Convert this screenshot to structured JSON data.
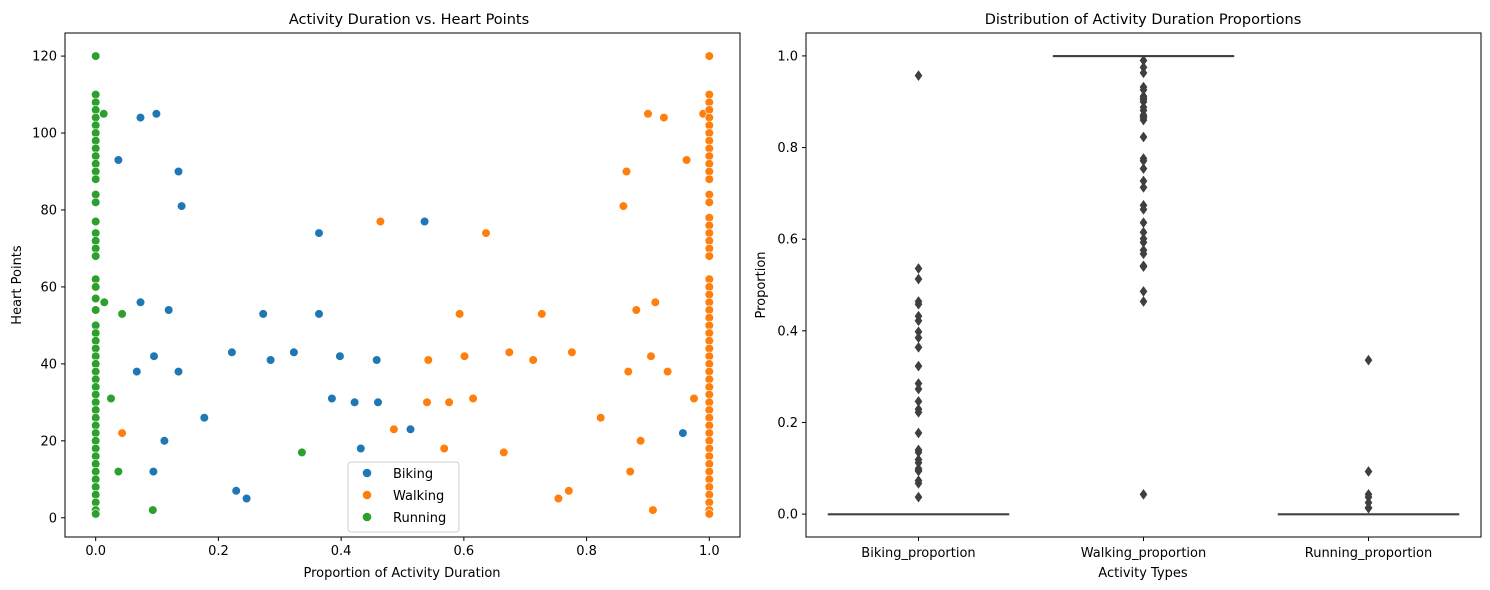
{
  "colors": {
    "biking": "#1f77b4",
    "walking": "#ff7f0e",
    "running": "#2ca02c",
    "box": "#3f3f3f"
  },
  "chart_data": [
    {
      "type": "scatter",
      "title": "Activity Duration vs. Heart Points",
      "xlabel": "Proportion of Activity Duration",
      "ylabel": "Heart Points",
      "xlim": [
        -0.05,
        1.05
      ],
      "ylim": [
        -5,
        126
      ],
      "xticks": [
        "0.0",
        "0.2",
        "0.4",
        "0.6",
        "0.8",
        "1.0"
      ],
      "xtick_values": [
        0,
        0.2,
        0.4,
        0.6,
        0.8,
        1.0
      ],
      "yticks": [
        "0",
        "20",
        "40",
        "60",
        "80",
        "100",
        "120"
      ],
      "ytick_values": [
        0,
        20,
        40,
        60,
        80,
        100,
        120
      ],
      "grid": false,
      "legend": "lower center",
      "series": [
        {
          "name": "Biking",
          "color": "#1f77b4",
          "points": [
            [
              0.037,
              93
            ],
            [
              0.073,
              104
            ],
            [
              0.099,
              105
            ],
            [
              0.135,
              90
            ],
            [
              0.14,
              81
            ],
            [
              0.364,
              74
            ],
            [
              0.536,
              77
            ],
            [
              0.073,
              56
            ],
            [
              0.119,
              54
            ],
            [
              0.273,
              53
            ],
            [
              0.364,
              53
            ],
            [
              0.222,
              43
            ],
            [
              0.323,
              43
            ],
            [
              0.095,
              42
            ],
            [
              0.398,
              42
            ],
            [
              0.285,
              41
            ],
            [
              0.458,
              41
            ],
            [
              0.067,
              38
            ],
            [
              0.135,
              38
            ],
            [
              0.385,
              31
            ],
            [
              0.422,
              30
            ],
            [
              0.46,
              30
            ],
            [
              0.177,
              26
            ],
            [
              0.513,
              23
            ],
            [
              0.957,
              22
            ],
            [
              0.112,
              20
            ],
            [
              0.432,
              18
            ],
            [
              0.094,
              12
            ],
            [
              0.229,
              7
            ],
            [
              0.246,
              5
            ]
          ]
        },
        {
          "name": "Walking",
          "color": "#ff7f0e",
          "points": [
            [
              0.9,
              105
            ],
            [
              0.926,
              104
            ],
            [
              0.99,
              105
            ],
            [
              0.963,
              93
            ],
            [
              0.865,
              90
            ],
            [
              0.86,
              81
            ],
            [
              0.464,
              77
            ],
            [
              0.636,
              74
            ],
            [
              0.912,
              56
            ],
            [
              0.881,
              54
            ],
            [
              0.593,
              53
            ],
            [
              0.727,
              53
            ],
            [
              0.674,
              43
            ],
            [
              0.776,
              43
            ],
            [
              0.601,
              42
            ],
            [
              0.905,
              42
            ],
            [
              0.542,
              41
            ],
            [
              0.713,
              41
            ],
            [
              0.868,
              38
            ],
            [
              0.932,
              38
            ],
            [
              0.615,
              31
            ],
            [
              0.975,
              31
            ],
            [
              0.54,
              30
            ],
            [
              0.576,
              30
            ],
            [
              0.823,
              26
            ],
            [
              0.486,
              23
            ],
            [
              0.043,
              22
            ],
            [
              0.888,
              20
            ],
            [
              0.568,
              18
            ],
            [
              0.665,
              17
            ],
            [
              0.871,
              12
            ],
            [
              0.771,
              7
            ],
            [
              0.754,
              5
            ],
            [
              0.908,
              2
            ],
            [
              1.0,
              120
            ],
            [
              1.0,
              110
            ],
            [
              1.0,
              108
            ],
            [
              1.0,
              106
            ],
            [
              1.0,
              104
            ],
            [
              1.0,
              102
            ],
            [
              1.0,
              100
            ],
            [
              1.0,
              98
            ],
            [
              1.0,
              96
            ],
            [
              1.0,
              94
            ],
            [
              1.0,
              92
            ],
            [
              1.0,
              90
            ],
            [
              1.0,
              88
            ],
            [
              1.0,
              84
            ],
            [
              1.0,
              82
            ],
            [
              1.0,
              78
            ],
            [
              1.0,
              76
            ],
            [
              1.0,
              74
            ],
            [
              1.0,
              72
            ],
            [
              1.0,
              70
            ],
            [
              1.0,
              68
            ],
            [
              1.0,
              62
            ],
            [
              1.0,
              60
            ],
            [
              1.0,
              58
            ],
            [
              1.0,
              56
            ],
            [
              1.0,
              54
            ],
            [
              1.0,
              52
            ],
            [
              1.0,
              50
            ],
            [
              1.0,
              48
            ],
            [
              1.0,
              46
            ],
            [
              1.0,
              44
            ],
            [
              1.0,
              42
            ],
            [
              1.0,
              40
            ],
            [
              1.0,
              38
            ],
            [
              1.0,
              36
            ],
            [
              1.0,
              34
            ],
            [
              1.0,
              32
            ],
            [
              1.0,
              30
            ],
            [
              1.0,
              28
            ],
            [
              1.0,
              26
            ],
            [
              1.0,
              24
            ],
            [
              1.0,
              22
            ],
            [
              1.0,
              20
            ],
            [
              1.0,
              18
            ],
            [
              1.0,
              16
            ],
            [
              1.0,
              14
            ],
            [
              1.0,
              12
            ],
            [
              1.0,
              10
            ],
            [
              1.0,
              8
            ],
            [
              1.0,
              6
            ],
            [
              1.0,
              4
            ],
            [
              1.0,
              2
            ],
            [
              1.0,
              1
            ]
          ]
        },
        {
          "name": "Running",
          "color": "#2ca02c",
          "points": [
            [
              0.013,
              105
            ],
            [
              0.014,
              56
            ],
            [
              0.043,
              53
            ],
            [
              0.025,
              31
            ],
            [
              0.336,
              17
            ],
            [
              0.037,
              12
            ],
            [
              0.093,
              2
            ],
            [
              0.0,
              120
            ],
            [
              0.0,
              110
            ],
            [
              0.0,
              108
            ],
            [
              0.0,
              106
            ],
            [
              0.0,
              104
            ],
            [
              0.0,
              102
            ],
            [
              0.0,
              100
            ],
            [
              0.0,
              98
            ],
            [
              0.0,
              96
            ],
            [
              0.0,
              94
            ],
            [
              0.0,
              92
            ],
            [
              0.0,
              90
            ],
            [
              0.0,
              88
            ],
            [
              0.0,
              84
            ],
            [
              0.0,
              82
            ],
            [
              0.0,
              77
            ],
            [
              0.0,
              74
            ],
            [
              0.0,
              72
            ],
            [
              0.0,
              70
            ],
            [
              0.0,
              68
            ],
            [
              0.0,
              62
            ],
            [
              0.0,
              60
            ],
            [
              0.0,
              57
            ],
            [
              0.0,
              54
            ],
            [
              0.0,
              50
            ],
            [
              0.0,
              48
            ],
            [
              0.0,
              46
            ],
            [
              0.0,
              44
            ],
            [
              0.0,
              42
            ],
            [
              0.0,
              40
            ],
            [
              0.0,
              38
            ],
            [
              0.0,
              36
            ],
            [
              0.0,
              34
            ],
            [
              0.0,
              32
            ],
            [
              0.0,
              30
            ],
            [
              0.0,
              28
            ],
            [
              0.0,
              26
            ],
            [
              0.0,
              24
            ],
            [
              0.0,
              22
            ],
            [
              0.0,
              20
            ],
            [
              0.0,
              18
            ],
            [
              0.0,
              16
            ],
            [
              0.0,
              14
            ],
            [
              0.0,
              12
            ],
            [
              0.0,
              10
            ],
            [
              0.0,
              8
            ],
            [
              0.0,
              6
            ],
            [
              0.0,
              4
            ],
            [
              0.0,
              2
            ],
            [
              0.0,
              1
            ]
          ]
        }
      ]
    },
    {
      "type": "box",
      "title": "Distribution of Activity Duration Proportions",
      "xlabel": "Activity Types",
      "ylabel": "Proportion",
      "ylim": [
        -0.05,
        1.05
      ],
      "yticks": [
        "0.0",
        "0.2",
        "0.4",
        "0.6",
        "0.8",
        "1.0"
      ],
      "ytick_values": [
        0,
        0.2,
        0.4,
        0.6,
        0.8,
        1.0
      ],
      "grid": false,
      "categories": [
        "Biking_proportion",
        "Walking_proportion",
        "Running_proportion"
      ],
      "boxes": [
        {
          "name": "Biking_proportion",
          "q1": 0,
          "median": 0,
          "q3": 0,
          "whisker_low": 0,
          "whisker_high": 0,
          "outliers": [
            0.957,
            0.536,
            0.513,
            0.464,
            0.458,
            0.432,
            0.422,
            0.398,
            0.385,
            0.364,
            0.323,
            0.285,
            0.273,
            0.246,
            0.229,
            0.222,
            0.177,
            0.14,
            0.135,
            0.119,
            0.112,
            0.099,
            0.095,
            0.094,
            0.073,
            0.067,
            0.037
          ]
        },
        {
          "name": "Walking_proportion",
          "q1": 1,
          "median": 1,
          "q3": 1,
          "whisker_low": 1,
          "whisker_high": 1,
          "outliers": [
            0.99,
            0.975,
            0.963,
            0.932,
            0.926,
            0.912,
            0.908,
            0.905,
            0.9,
            0.888,
            0.881,
            0.871,
            0.868,
            0.865,
            0.86,
            0.823,
            0.776,
            0.771,
            0.754,
            0.727,
            0.713,
            0.674,
            0.665,
            0.636,
            0.615,
            0.601,
            0.593,
            0.576,
            0.568,
            0.542,
            0.54,
            0.486,
            0.464,
            0.043
          ]
        },
        {
          "name": "Running_proportion",
          "q1": 0,
          "median": 0,
          "q3": 0,
          "whisker_low": 0,
          "whisker_high": 0,
          "outliers": [
            0.336,
            0.093,
            0.043,
            0.037,
            0.025,
            0.014,
            0.013
          ]
        }
      ]
    }
  ]
}
